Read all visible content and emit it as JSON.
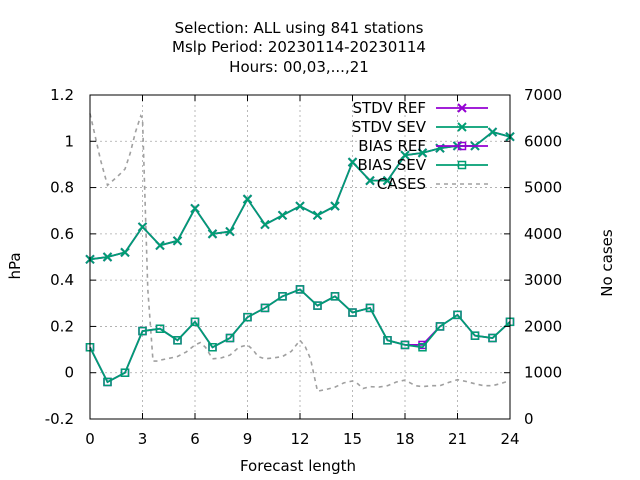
{
  "chart_data": {
    "type": "line",
    "title_lines": [
      "Selection: ALL using   841 stations",
      "Mslp   Period: 20230114-20230114",
      "Hours:  00,03,...,21"
    ],
    "xlabel": "Forecast length",
    "ylabel": "hPa",
    "y2label": "No cases",
    "xlim": [
      0,
      24
    ],
    "ylim": [
      -0.2,
      1.2
    ],
    "y2lim": [
      0,
      7000
    ],
    "x_ticks": [
      "0",
      "3",
      "6",
      "9",
      "12",
      "15",
      "18",
      "21",
      "24"
    ],
    "y_ticks": [
      "-0.2",
      "0",
      "0.2",
      "0.4",
      "0.6",
      "0.8",
      "1",
      "1.2"
    ],
    "y2_ticks": [
      "0",
      "1000",
      "2000",
      "3000",
      "4000",
      "5000",
      "6000",
      "7000"
    ],
    "grid": true,
    "legend_position": "top-right",
    "x": [
      0,
      1,
      2,
      3,
      4,
      5,
      6,
      7,
      8,
      9,
      10,
      11,
      12,
      13,
      14,
      15,
      16,
      17,
      18,
      19,
      20,
      21,
      22,
      23,
      24
    ],
    "series": [
      {
        "name": "STDV REF",
        "color": "#9400d3",
        "marker": "x",
        "axis": "y",
        "values": [
          0.49,
          0.5,
          0.52,
          0.63,
          0.55,
          0.57,
          0.71,
          0.6,
          0.61,
          0.75,
          0.64,
          0.68,
          0.72,
          0.68,
          0.72,
          0.91,
          0.83,
          0.83,
          0.94,
          0.95,
          0.97,
          0.98,
          0.98,
          1.04,
          1.02
        ]
      },
      {
        "name": "STDV SEV",
        "color": "#009e73",
        "marker": "x",
        "axis": "y",
        "values": [
          0.49,
          0.5,
          0.52,
          0.63,
          0.55,
          0.57,
          0.71,
          0.6,
          0.61,
          0.75,
          0.64,
          0.68,
          0.72,
          0.68,
          0.72,
          0.91,
          0.83,
          0.83,
          0.94,
          0.95,
          0.97,
          0.98,
          0.98,
          1.04,
          1.02
        ]
      },
      {
        "name": "BIAS REF",
        "color": "#9400d3",
        "marker": "square",
        "axis": "y",
        "values": [
          0.11,
          -0.04,
          0.0,
          0.18,
          0.19,
          0.14,
          0.22,
          0.11,
          0.15,
          0.24,
          0.28,
          0.33,
          0.36,
          0.29,
          0.33,
          0.26,
          0.28,
          0.14,
          0.12,
          0.12,
          0.2,
          0.25,
          0.16,
          0.15,
          0.22
        ]
      },
      {
        "name": "BIAS SEV",
        "color": "#009e73",
        "marker": "square",
        "axis": "y",
        "values": [
          0.11,
          -0.04,
          0.0,
          0.18,
          0.19,
          0.14,
          0.22,
          0.11,
          0.15,
          0.24,
          0.28,
          0.33,
          0.36,
          0.29,
          0.33,
          0.26,
          0.28,
          0.14,
          0.12,
          0.11,
          0.2,
          0.25,
          0.16,
          0.15,
          0.22
        ]
      },
      {
        "name": "CASES",
        "color": "#a0a0a0",
        "marker": "none",
        "dashed": true,
        "axis": "y2",
        "x": [
          0,
          0.3,
          0.6,
          1,
          1.3,
          1.6,
          2,
          2.3,
          2.6,
          2.9,
          3,
          3.3,
          3.6,
          3.9,
          4,
          4.5,
          5,
          5.5,
          6,
          6.3,
          6.6,
          7,
          7.5,
          8,
          8.5,
          9,
          9.3,
          9.6,
          10,
          10.5,
          11,
          11.5,
          12,
          12.3,
          12.6,
          13,
          13.5,
          14,
          14.5,
          15,
          15.3,
          15.6,
          16,
          16.5,
          17,
          17.5,
          18,
          18.3,
          18.6,
          19,
          19.5,
          20,
          20.5,
          21,
          21.5,
          22,
          22.5,
          23,
          23.5,
          24
        ],
        "values": [
          6600,
          6100,
          5600,
          5050,
          5150,
          5250,
          5400,
          5750,
          6200,
          6550,
          6500,
          2800,
          1250,
          1250,
          1270,
          1310,
          1350,
          1450,
          1600,
          1650,
          1550,
          1300,
          1320,
          1380,
          1550,
          1600,
          1500,
          1350,
          1300,
          1320,
          1350,
          1460,
          1700,
          1560,
          1300,
          600,
          640,
          690,
          780,
          820,
          760,
          660,
          700,
          690,
          720,
          800,
          840,
          780,
          720,
          700,
          720,
          720,
          790,
          850,
          810,
          760,
          720,
          720,
          770,
          830
        ]
      }
    ]
  }
}
